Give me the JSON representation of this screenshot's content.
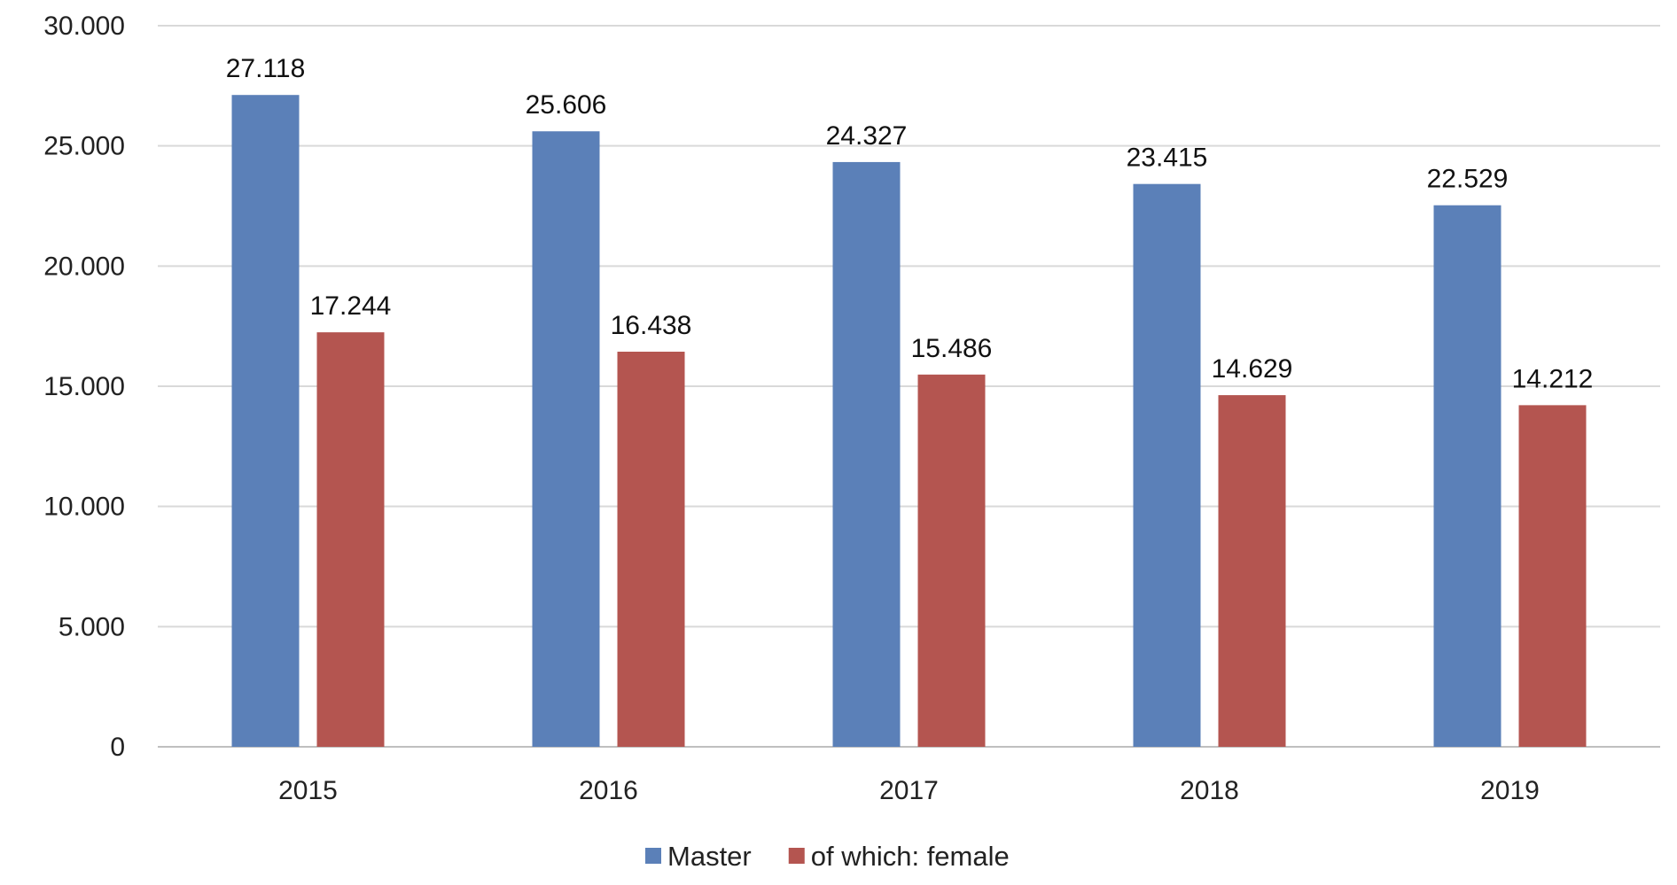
{
  "chart_data": {
    "type": "bar",
    "categories": [
      "2015",
      "2016",
      "2017",
      "2018",
      "2019"
    ],
    "series": [
      {
        "name": "Master",
        "values": [
          27118,
          25606,
          24327,
          23415,
          22529
        ],
        "labels": [
          "27.118",
          "25.606",
          "24.327",
          "23.415",
          "22.529"
        ],
        "color": "#5b80b8"
      },
      {
        "name": "of which: female",
        "values": [
          17244,
          16438,
          15486,
          14629,
          14212
        ],
        "labels": [
          "17.244",
          "16.438",
          "15.486",
          "14.629",
          "14.212"
        ],
        "color": "#b45550"
      }
    ],
    "ylim": [
      0,
      30000
    ],
    "yticks": [
      0,
      5000,
      10000,
      15000,
      20000,
      25000,
      30000
    ],
    "ytick_labels": [
      "0",
      "5.000",
      "10.000",
      "15.000",
      "20.000",
      "25.000",
      "30.000"
    ],
    "grid": true,
    "legend_position": "bottom",
    "title": "",
    "xlabel": "",
    "ylabel": ""
  }
}
